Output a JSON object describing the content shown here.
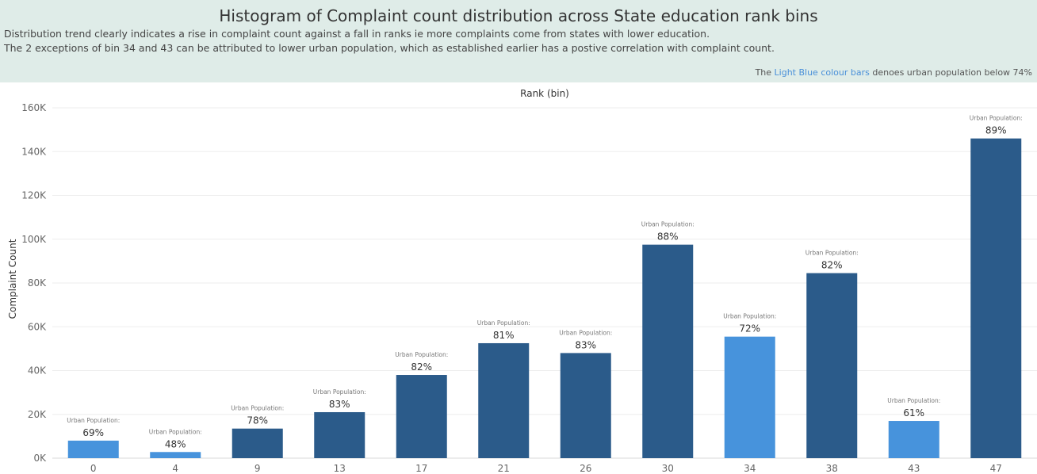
{
  "header": {
    "title": "Histogram of Complaint count distribution across State education rank bins",
    "subtitle_line1": "Distribution trend clearly indicates a rise in complaint count against a fall in ranks ie more complaints come from states with lower education.",
    "subtitle_line2": "The 2 exceptions of bin 34 and 43 can be attributed to lower urban population, which as established earlier has a postive correlation with complaint count.",
    "note_prefix": "The ",
    "note_highlight": "Light Blue colour bars",
    "note_suffix": " denoes urban population below 74%"
  },
  "colors": {
    "dark_bar": "#2b5b8a",
    "light_bar": "#4793dc",
    "header_bg": "#dfece8",
    "highlight_text": "#4a90d9"
  },
  "chart_data": {
    "type": "bar",
    "title": "Histogram of Complaint count distribution across State education rank bins",
    "xlabel": "Rank (bin)",
    "ylabel": "Complaint Count",
    "ylim": [
      0,
      160000
    ],
    "y_ticks": [
      {
        "value": 0,
        "label": "0K"
      },
      {
        "value": 20000,
        "label": "20K"
      },
      {
        "value": 40000,
        "label": "40K"
      },
      {
        "value": 60000,
        "label": "60K"
      },
      {
        "value": 80000,
        "label": "80K"
      },
      {
        "value": 100000,
        "label": "100K"
      },
      {
        "value": 120000,
        "label": "120K"
      },
      {
        "value": 140000,
        "label": "140K"
      },
      {
        "value": 160000,
        "label": "160K"
      }
    ],
    "grid": true,
    "categories": [
      "0",
      "4",
      "9",
      "13",
      "17",
      "21",
      "26",
      "30",
      "34",
      "38",
      "43",
      "47"
    ],
    "values": [
      8000,
      2800,
      13500,
      21000,
      38000,
      52500,
      48000,
      97500,
      55500,
      84500,
      17000,
      146000
    ],
    "urban_population": [
      "69%",
      "48%",
      "78%",
      "83%",
      "82%",
      "81%",
      "83%",
      "88%",
      "72%",
      "82%",
      "61%",
      "89%"
    ],
    "label_prefix": "Urban Population:",
    "low_urban": [
      true,
      true,
      false,
      false,
      false,
      false,
      false,
      false,
      true,
      false,
      true,
      false
    ]
  }
}
